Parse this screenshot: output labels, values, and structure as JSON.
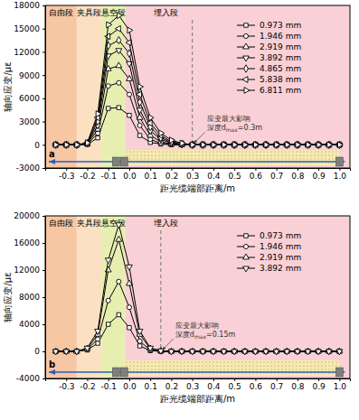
{
  "chart_data": [
    {
      "type": "line",
      "panel": "a",
      "x_label": "距光缆端部距离/m",
      "y_label": "轴向应变/με",
      "xlim": [
        -0.4,
        1.05
      ],
      "xticks": [
        -0.3,
        -0.2,
        -0.1,
        {
          "value": 0,
          "label": "0.0"
        },
        0.1,
        0.2,
        0.3,
        0.4,
        0.5,
        0.6,
        0.7,
        0.8,
        0.9,
        {
          "value": 1,
          "label": "1.0"
        }
      ],
      "ylim": [
        -3000,
        18000
      ],
      "yticks": [
        -3000,
        0,
        3000,
        6000,
        9000,
        12000,
        15000,
        18000
      ],
      "regions": [
        {
          "label": "自由段",
          "start": -0.4,
          "end": -0.25,
          "color": "#f7c6a3"
        },
        {
          "label": "夹具段",
          "start": -0.25,
          "end": -0.13,
          "color": "#fbe0c2"
        },
        {
          "label": "悬空段",
          "start": -0.13,
          "end": -0.02,
          "color": "#e6efb0"
        },
        {
          "label": "埋入段",
          "start": -0.02,
          "end": 1.05,
          "color": "#f9d0d6"
        }
      ],
      "annotations": [
        {
          "x": 0.3,
          "text": [
            "应变最大影响",
            "深度dmax=0.3m"
          ],
          "subscript": "max"
        }
      ],
      "x": [
        -0.35,
        -0.3,
        -0.25,
        -0.2,
        -0.15,
        -0.1,
        -0.05,
        0,
        0.05,
        0.1,
        0.15,
        0.2,
        0.25,
        0.3,
        0.35,
        0.4,
        0.45,
        0.5,
        0.55,
        0.6,
        0.65,
        0.7,
        0.75,
        0.8,
        0.85,
        0.9,
        0.95,
        1.0
      ],
      "series": [
        {
          "name": "0.973 mm",
          "color": "#000000",
          "marker": "square",
          "values": [
            0,
            0,
            0,
            50,
            900,
            4700,
            4800,
            3800,
            1200,
            300,
            100,
            0,
            0,
            0,
            0,
            0,
            0,
            0,
            0,
            0,
            0,
            0,
            0,
            0,
            0,
            0,
            0,
            0
          ]
        },
        {
          "name": "1.946 mm",
          "color": "#000000",
          "marker": "circle",
          "values": [
            0,
            0,
            0,
            80,
            1500,
            7600,
            8000,
            6500,
            2500,
            700,
            200,
            50,
            0,
            0,
            0,
            0,
            0,
            0,
            0,
            0,
            0,
            0,
            0,
            0,
            0,
            0,
            0,
            0
          ]
        },
        {
          "name": "2.919 mm",
          "color": "#000000",
          "marker": "triangle-up",
          "values": [
            0,
            0,
            0,
            100,
            2000,
            9800,
            10200,
            8500,
            3500,
            1200,
            400,
            100,
            0,
            0,
            0,
            0,
            0,
            0,
            0,
            0,
            0,
            0,
            0,
            0,
            0,
            0,
            0,
            0
          ]
        },
        {
          "name": "3.892 mm",
          "color": "#000000",
          "marker": "triangle-down",
          "values": [
            0,
            0,
            0,
            150,
            2500,
            11500,
            12200,
            10500,
            4500,
            1800,
            700,
            200,
            50,
            0,
            0,
            0,
            0,
            0,
            0,
            0,
            0,
            0,
            0,
            0,
            0,
            0,
            0,
            0
          ]
        },
        {
          "name": "4.865 mm",
          "color": "#000000",
          "marker": "diamond",
          "values": [
            0,
            0,
            0,
            200,
            3000,
            12800,
            13500,
            11800,
            5500,
            2300,
            900,
            300,
            100,
            0,
            0,
            0,
            0,
            0,
            0,
            0,
            0,
            0,
            0,
            0,
            0,
            0,
            0,
            0
          ]
        },
        {
          "name": "5.838 mm",
          "color": "#000000",
          "marker": "triangle-left",
          "values": [
            0,
            0,
            0,
            200,
            3500,
            14000,
            15000,
            13200,
            6500,
            2800,
            1200,
            400,
            150,
            0,
            0,
            0,
            0,
            0,
            0,
            0,
            0,
            0,
            0,
            0,
            0,
            0,
            0,
            0
          ]
        },
        {
          "name": "6.811 mm",
          "color": "#000000",
          "marker": "triangle-right",
          "values": [
            0,
            0,
            0,
            250,
            4000,
            15500,
            16700,
            14800,
            7500,
            3500,
            1500,
            600,
            200,
            0,
            0,
            0,
            0,
            0,
            0,
            0,
            0,
            0,
            0,
            0,
            0,
            0,
            0,
            0
          ]
        }
      ]
    },
    {
      "type": "line",
      "panel": "b",
      "x_label": "距光缆端部距离/m",
      "y_label": "轴向应变/με",
      "xlim": [
        -0.4,
        1.05
      ],
      "xticks": [
        -0.3,
        -0.2,
        -0.1,
        {
          "value": 0,
          "label": "0.0"
        },
        0.1,
        0.2,
        0.3,
        0.4,
        0.5,
        0.6,
        0.7,
        0.8,
        0.9,
        {
          "value": 1,
          "label": "1.0"
        }
      ],
      "ylim": [
        -4000,
        20000
      ],
      "yticks": [
        -4000,
        0,
        4000,
        8000,
        12000,
        16000,
        20000
      ],
      "regions": [
        {
          "label": "自由段",
          "start": -0.4,
          "end": -0.25,
          "color": "#f7c6a3"
        },
        {
          "label": "夹具段",
          "start": -0.25,
          "end": -0.13,
          "color": "#fbe0c2"
        },
        {
          "label": "悬空段",
          "start": -0.13,
          "end": -0.02,
          "color": "#e6efb0"
        },
        {
          "label": "埋入段",
          "start": -0.02,
          "end": 1.05,
          "color": "#f9d0d6"
        }
      ],
      "annotations": [
        {
          "x": 0.15,
          "text": [
            "应变最大影响",
            "深度dmax=0.15m"
          ],
          "subscript": "max"
        }
      ],
      "x": [
        -0.35,
        -0.3,
        -0.25,
        -0.2,
        -0.15,
        -0.1,
        -0.05,
        0,
        0.05,
        0.1,
        0.15,
        0.2,
        0.25,
        0.3,
        0.35,
        0.4,
        0.45,
        0.5,
        0.55,
        0.6,
        0.65,
        0.7,
        0.75,
        0.8,
        0.85,
        0.9,
        0.95,
        1.0
      ],
      "series": [
        {
          "name": "0.973 mm",
          "color": "#000000",
          "marker": "square",
          "values": [
            0,
            0,
            0,
            200,
            1200,
            4000,
            5400,
            3500,
            800,
            100,
            0,
            0,
            0,
            0,
            0,
            0,
            0,
            0,
            0,
            0,
            0,
            0,
            0,
            0,
            0,
            0,
            0,
            0
          ]
        },
        {
          "name": "1.946 mm",
          "color": "#000000",
          "marker": "circle",
          "values": [
            0,
            0,
            0,
            300,
            1800,
            7500,
            10300,
            6500,
            1500,
            200,
            0,
            0,
            0,
            0,
            0,
            0,
            0,
            0,
            0,
            0,
            0,
            0,
            0,
            0,
            0,
            0,
            0,
            0
          ]
        },
        {
          "name": "2.919 mm",
          "color": "#000000",
          "marker": "triangle-up",
          "values": [
            0,
            0,
            0,
            400,
            2500,
            12000,
            16500,
            10000,
            2500,
            400,
            50,
            0,
            0,
            0,
            0,
            0,
            0,
            0,
            0,
            0,
            0,
            0,
            0,
            0,
            0,
            0,
            0,
            0
          ]
        },
        {
          "name": "3.892 mm",
          "color": "#000000",
          "marker": "triangle-down",
          "values": [
            0,
            0,
            0,
            500,
            3000,
            13500,
            18700,
            12500,
            3000,
            500,
            100,
            0,
            0,
            0,
            0,
            0,
            0,
            0,
            0,
            0,
            0,
            0,
            0,
            0,
            0,
            0,
            0,
            0
          ]
        }
      ]
    }
  ]
}
